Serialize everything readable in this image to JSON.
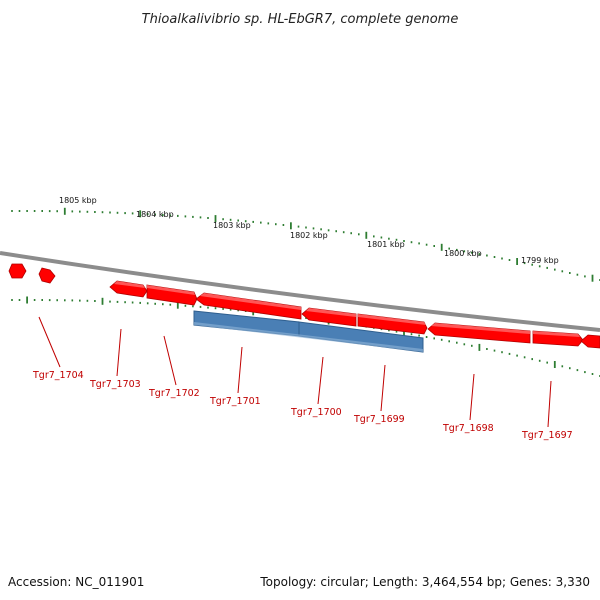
{
  "title": "Thioalkalivibrio sp. HL-EbGR7, complete genome",
  "footer": {
    "accession": "Accession: NC_011901",
    "summary": "Topology: circular; Length: 3,464,554 bp; Genes: 3,330"
  },
  "scale_labels": [
    "1805 kbp",
    "1804 kbp",
    "1803 kbp",
    "1802 kbp",
    "1801 kbp",
    "1800 kbp",
    "1799 kbp"
  ],
  "gene_labels": [
    "Tgr7_1704",
    "Tgr7_1703",
    "Tgr7_1702",
    "Tgr7_1701",
    "Tgr7_1700",
    "Tgr7_1699",
    "Tgr7_1698",
    "Tgr7_1697"
  ],
  "colors": {
    "gene_fill": "#ff0000",
    "gene_dark": "#b00000",
    "gene_light": "#ff6b6b",
    "highlight_fill": "#4a7fb5",
    "highlight_edge": "#2f5f8f",
    "backbone": "#8c8c8c",
    "tick": "#2e7d32",
    "label": "#c00000"
  }
}
